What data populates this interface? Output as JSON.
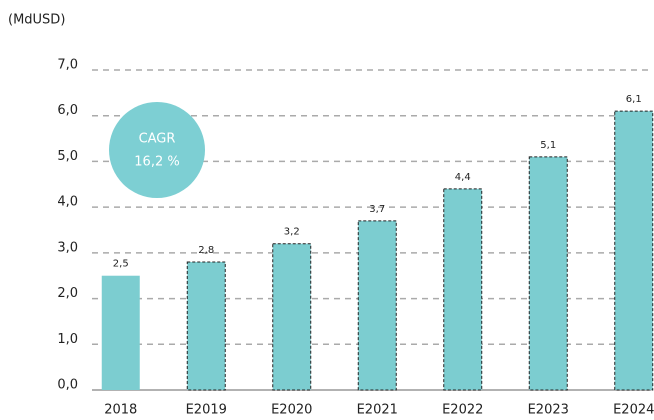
{
  "chart_data": {
    "type": "bar",
    "y_axis_label": "(MdUSD)",
    "categories": [
      "2018",
      "E2019",
      "E2020",
      "E2021",
      "E2022",
      "E2023",
      "E2024"
    ],
    "values": [
      2.5,
      2.8,
      3.2,
      3.7,
      4.4,
      5.1,
      6.1
    ],
    "value_labels": [
      "2,5",
      "2,8",
      "3,2",
      "3,7",
      "4,4",
      "5,1",
      "6,1"
    ],
    "outline_dashed": [
      false,
      true,
      true,
      true,
      true,
      true,
      true
    ],
    "color": "#7ccdd0",
    "ylim": [
      0,
      7
    ],
    "yticks": [
      {
        "value": 0,
        "label": "0,0"
      },
      {
        "value": 1,
        "label": "1,0"
      },
      {
        "value": 2,
        "label": "2,0"
      },
      {
        "value": 3,
        "label": "3,0"
      },
      {
        "value": 4,
        "label": "4,0"
      },
      {
        "value": 5,
        "label": "5,0"
      },
      {
        "value": 6,
        "label": "6,0"
      },
      {
        "value": 7,
        "label": "7,0"
      }
    ],
    "grid": true,
    "annotation": {
      "title": "CAGR",
      "text": "16,2 %",
      "color": "#7dcfd3"
    }
  }
}
